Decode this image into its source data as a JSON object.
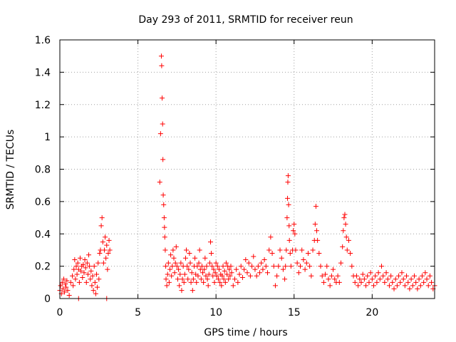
{
  "chart_data": {
    "type": "scatter",
    "title": "Day 293 of 2011, SRMTID for receiver reun",
    "xlabel": "GPS time / hours",
    "ylabel": "SRMTID / TECUs",
    "xlim": [
      0,
      24
    ],
    "ylim": [
      0,
      1.6
    ],
    "xticks": [
      0,
      5,
      10,
      15,
      20
    ],
    "yticks": [
      0,
      0.2,
      0.4,
      0.6,
      0.8,
      1,
      1.2,
      1.4,
      1.6
    ],
    "xtick_labels": [
      "0",
      "5",
      "10",
      "15",
      "20"
    ],
    "ytick_labels": [
      "0",
      "0.2",
      "0.4",
      "0.6",
      "0.8",
      "1",
      "1.2",
      "1.4",
      "1.6"
    ],
    "grid": true,
    "marker": "+",
    "color": "#ff0000",
    "series": [
      {
        "name": "SRMTID",
        "points": [
          [
            0.0,
            0.05
          ],
          [
            0.05,
            0.08
          ],
          [
            0.1,
            0.03
          ],
          [
            0.15,
            0.1
          ],
          [
            0.2,
            0.06
          ],
          [
            0.25,
            0.12
          ],
          [
            0.3,
            0.04
          ],
          [
            0.35,
            0.09
          ],
          [
            0.4,
            0.07
          ],
          [
            0.45,
            0.11
          ],
          [
            0.5,
            0.05
          ],
          [
            0.6,
            0.02
          ],
          [
            0.7,
            0.1
          ],
          [
            0.8,
            0.14
          ],
          [
            0.85,
            0.08
          ],
          [
            0.9,
            0.18
          ],
          [
            0.95,
            0.24
          ],
          [
            1.0,
            0.12
          ],
          [
            1.05,
            0.2
          ],
          [
            1.1,
            0.15
          ],
          [
            1.15,
            0.22
          ],
          [
            1.2,
            0.18
          ],
          [
            1.25,
            0.1
          ],
          [
            1.3,
            0.25
          ],
          [
            1.35,
            0.17
          ],
          [
            1.4,
            0.2
          ],
          [
            1.45,
            0.13
          ],
          [
            1.5,
            0.21
          ],
          [
            1.55,
            0.16
          ],
          [
            1.6,
            0.24
          ],
          [
            1.65,
            0.19
          ],
          [
            1.7,
            0.1
          ],
          [
            1.75,
            0.22
          ],
          [
            1.8,
            0.15
          ],
          [
            1.85,
            0.27
          ],
          [
            1.9,
            0.2
          ],
          [
            1.95,
            0.12
          ],
          [
            2.0,
            0.17
          ],
          [
            2.05,
            0.08
          ],
          [
            2.1,
            0.14
          ],
          [
            2.15,
            0.05
          ],
          [
            2.2,
            0.2
          ],
          [
            2.25,
            0.1
          ],
          [
            2.3,
            0.03
          ],
          [
            2.35,
            0.15
          ],
          [
            2.4,
            0.07
          ],
          [
            2.45,
            0.22
          ],
          [
            2.5,
            0.12
          ],
          [
            2.55,
            0.28
          ],
          [
            2.6,
            0.3
          ],
          [
            2.65,
            0.45
          ],
          [
            2.7,
            0.5
          ],
          [
            2.75,
            0.35
          ],
          [
            2.8,
            0.22
          ],
          [
            2.85,
            0.3
          ],
          [
            2.9,
            0.38
          ],
          [
            2.95,
            0.25
          ],
          [
            3.0,
            0.33
          ],
          [
            3.05,
            0.18
          ],
          [
            3.1,
            0.28
          ],
          [
            3.15,
            0.36
          ],
          [
            3.2,
            0.3
          ],
          [
            3.0,
            0.0
          ],
          [
            1.2,
            0.0
          ],
          [
            6.4,
            0.72
          ],
          [
            6.45,
            1.02
          ],
          [
            6.5,
            1.5
          ],
          [
            6.52,
            1.44
          ],
          [
            6.55,
            1.24
          ],
          [
            6.58,
            1.08
          ],
          [
            6.6,
            0.86
          ],
          [
            6.62,
            0.64
          ],
          [
            6.65,
            0.58
          ],
          [
            6.68,
            0.5
          ],
          [
            6.7,
            0.44
          ],
          [
            6.72,
            0.38
          ],
          [
            6.75,
            0.3
          ],
          [
            6.78,
            0.2
          ],
          [
            6.8,
            0.12
          ],
          [
            6.85,
            0.08
          ],
          [
            6.9,
            0.15
          ],
          [
            6.95,
            0.22
          ],
          [
            7.0,
            0.1
          ],
          [
            7.05,
            0.18
          ],
          [
            7.1,
            0.27
          ],
          [
            7.15,
            0.14
          ],
          [
            7.2,
            0.2
          ],
          [
            7.25,
            0.3
          ],
          [
            7.3,
            0.25
          ],
          [
            7.35,
            0.16
          ],
          [
            7.4,
            0.22
          ],
          [
            7.45,
            0.32
          ],
          [
            7.5,
            0.2
          ],
          [
            7.55,
            0.12
          ],
          [
            7.6,
            0.18
          ],
          [
            7.65,
            0.08
          ],
          [
            7.7,
            0.15
          ],
          [
            7.75,
            0.22
          ],
          [
            7.8,
            0.05
          ],
          [
            7.85,
            0.12
          ],
          [
            7.9,
            0.2
          ],
          [
            7.95,
            0.1
          ],
          [
            8.0,
            0.15
          ],
          [
            8.05,
            0.25
          ],
          [
            8.1,
            0.3
          ],
          [
            8.15,
            0.2
          ],
          [
            8.2,
            0.12
          ],
          [
            8.25,
            0.18
          ],
          [
            8.3,
            0.28
          ],
          [
            8.35,
            0.22
          ],
          [
            8.4,
            0.1
          ],
          [
            8.45,
            0.16
          ],
          [
            8.5,
            0.05
          ],
          [
            8.55,
            0.12
          ],
          [
            8.6,
            0.2
          ],
          [
            8.65,
            0.25
          ],
          [
            8.7,
            0.15
          ],
          [
            8.75,
            0.1
          ],
          [
            8.8,
            0.2
          ],
          [
            8.85,
            0.14
          ],
          [
            8.9,
            0.22
          ],
          [
            8.95,
            0.3
          ],
          [
            9.0,
            0.18
          ],
          [
            9.05,
            0.12
          ],
          [
            9.1,
            0.2
          ],
          [
            9.15,
            0.16
          ],
          [
            9.2,
            0.1
          ],
          [
            9.25,
            0.18
          ],
          [
            9.3,
            0.25
          ],
          [
            9.35,
            0.14
          ],
          [
            9.4,
            0.2
          ],
          [
            9.45,
            0.12
          ],
          [
            9.5,
            0.08
          ],
          [
            9.55,
            0.15
          ],
          [
            9.6,
            0.22
          ],
          [
            9.65,
            0.35
          ],
          [
            9.7,
            0.28
          ],
          [
            9.75,
            0.2
          ],
          [
            9.8,
            0.14
          ],
          [
            9.85,
            0.18
          ],
          [
            9.9,
            0.1
          ],
          [
            9.95,
            0.16
          ],
          [
            10.0,
            0.22
          ],
          [
            10.05,
            0.14
          ],
          [
            10.1,
            0.2
          ],
          [
            10.15,
            0.12
          ],
          [
            10.2,
            0.18
          ],
          [
            10.25,
            0.1
          ],
          [
            10.3,
            0.15
          ],
          [
            10.35,
            0.08
          ],
          [
            10.4,
            0.14
          ],
          [
            10.45,
            0.2
          ],
          [
            10.5,
            0.12
          ],
          [
            10.55,
            0.17
          ],
          [
            10.6,
            0.1
          ],
          [
            10.65,
            0.22
          ],
          [
            10.7,
            0.15
          ],
          [
            10.75,
            0.2
          ],
          [
            10.8,
            0.12
          ],
          [
            10.85,
            0.18
          ],
          [
            10.9,
            0.14
          ],
          [
            10.95,
            0.2
          ],
          [
            11.0,
            0.16
          ],
          [
            11.1,
            0.08
          ],
          [
            11.2,
            0.12
          ],
          [
            11.3,
            0.18
          ],
          [
            11.4,
            0.1
          ],
          [
            11.5,
            0.15
          ],
          [
            11.6,
            0.2
          ],
          [
            11.7,
            0.13
          ],
          [
            11.8,
            0.18
          ],
          [
            11.9,
            0.24
          ],
          [
            12.0,
            0.16
          ],
          [
            12.1,
            0.22
          ],
          [
            12.2,
            0.14
          ],
          [
            12.3,
            0.2
          ],
          [
            12.4,
            0.26
          ],
          [
            12.5,
            0.18
          ],
          [
            12.6,
            0.14
          ],
          [
            12.7,
            0.2
          ],
          [
            12.8,
            0.16
          ],
          [
            12.9,
            0.22
          ],
          [
            13.0,
            0.18
          ],
          [
            13.1,
            0.24
          ],
          [
            13.2,
            0.2
          ],
          [
            13.3,
            0.16
          ],
          [
            13.4,
            0.3
          ],
          [
            13.5,
            0.38
          ],
          [
            13.6,
            0.28
          ],
          [
            13.7,
            0.2
          ],
          [
            13.8,
            0.08
          ],
          [
            13.9,
            0.14
          ],
          [
            14.0,
            0.2
          ],
          [
            14.1,
            0.3
          ],
          [
            14.2,
            0.25
          ],
          [
            14.3,
            0.18
          ],
          [
            14.4,
            0.12
          ],
          [
            14.45,
            0.2
          ],
          [
            14.5,
            0.3
          ],
          [
            14.55,
            0.5
          ],
          [
            14.58,
            0.62
          ],
          [
            14.6,
            0.72
          ],
          [
            14.62,
            0.76
          ],
          [
            14.65,
            0.58
          ],
          [
            14.68,
            0.45
          ],
          [
            14.7,
            0.36
          ],
          [
            14.75,
            0.28
          ],
          [
            14.8,
            0.2
          ],
          [
            14.9,
            0.3
          ],
          [
            14.95,
            0.42
          ],
          [
            15.0,
            0.46
          ],
          [
            15.05,
            0.4
          ],
          [
            15.1,
            0.3
          ],
          [
            15.2,
            0.22
          ],
          [
            15.3,
            0.16
          ],
          [
            15.4,
            0.2
          ],
          [
            15.5,
            0.3
          ],
          [
            15.6,
            0.24
          ],
          [
            15.7,
            0.18
          ],
          [
            15.8,
            0.22
          ],
          [
            15.9,
            0.28
          ],
          [
            16.0,
            0.2
          ],
          [
            16.1,
            0.14
          ],
          [
            16.2,
            0.3
          ],
          [
            16.3,
            0.36
          ],
          [
            16.35,
            0.46
          ],
          [
            16.4,
            0.57
          ],
          [
            16.45,
            0.42
          ],
          [
            16.5,
            0.36
          ],
          [
            16.6,
            0.28
          ],
          [
            16.7,
            0.2
          ],
          [
            16.8,
            0.14
          ],
          [
            16.9,
            0.1
          ],
          [
            17.0,
            0.15
          ],
          [
            17.1,
            0.2
          ],
          [
            17.2,
            0.12
          ],
          [
            17.3,
            0.08
          ],
          [
            17.4,
            0.14
          ],
          [
            17.5,
            0.18
          ],
          [
            17.6,
            0.12
          ],
          [
            17.7,
            0.1
          ],
          [
            17.8,
            0.14
          ],
          [
            17.9,
            0.1
          ],
          [
            18.0,
            0.22
          ],
          [
            18.1,
            0.32
          ],
          [
            18.15,
            0.42
          ],
          [
            18.2,
            0.5
          ],
          [
            18.25,
            0.52
          ],
          [
            18.3,
            0.46
          ],
          [
            18.35,
            0.38
          ],
          [
            18.4,
            0.3
          ],
          [
            18.5,
            0.36
          ],
          [
            18.6,
            0.28
          ],
          [
            18.7,
            0.2
          ],
          [
            18.8,
            0.14
          ],
          [
            18.9,
            0.1
          ],
          [
            19.0,
            0.14
          ],
          [
            19.1,
            0.08
          ],
          [
            19.2,
            0.12
          ],
          [
            19.3,
            0.1
          ],
          [
            19.4,
            0.15
          ],
          [
            19.5,
            0.12
          ],
          [
            19.6,
            0.08
          ],
          [
            19.7,
            0.14
          ],
          [
            19.8,
            0.1
          ],
          [
            19.9,
            0.16
          ],
          [
            20.0,
            0.12
          ],
          [
            20.1,
            0.08
          ],
          [
            20.2,
            0.14
          ],
          [
            20.3,
            0.1
          ],
          [
            20.4,
            0.16
          ],
          [
            20.5,
            0.12
          ],
          [
            20.6,
            0.2
          ],
          [
            20.7,
            0.14
          ],
          [
            20.8,
            0.1
          ],
          [
            20.9,
            0.16
          ],
          [
            21.0,
            0.12
          ],
          [
            21.1,
            0.08
          ],
          [
            21.2,
            0.14
          ],
          [
            21.3,
            0.1
          ],
          [
            21.4,
            0.06
          ],
          [
            21.5,
            0.12
          ],
          [
            21.6,
            0.08
          ],
          [
            21.7,
            0.14
          ],
          [
            21.8,
            0.1
          ],
          [
            21.9,
            0.16
          ],
          [
            22.0,
            0.12
          ],
          [
            22.1,
            0.08
          ],
          [
            22.2,
            0.14
          ],
          [
            22.3,
            0.1
          ],
          [
            22.4,
            0.06
          ],
          [
            22.5,
            0.12
          ],
          [
            22.6,
            0.08
          ],
          [
            22.7,
            0.14
          ],
          [
            22.8,
            0.1
          ],
          [
            22.9,
            0.06
          ],
          [
            23.0,
            0.12
          ],
          [
            23.1,
            0.08
          ],
          [
            23.2,
            0.14
          ],
          [
            23.3,
            0.1
          ],
          [
            23.4,
            0.16
          ],
          [
            23.5,
            0.12
          ],
          [
            23.6,
            0.08
          ],
          [
            23.7,
            0.14
          ],
          [
            23.8,
            0.1
          ],
          [
            23.9,
            0.06
          ],
          [
            24.0,
            0.08
          ]
        ]
      }
    ]
  }
}
